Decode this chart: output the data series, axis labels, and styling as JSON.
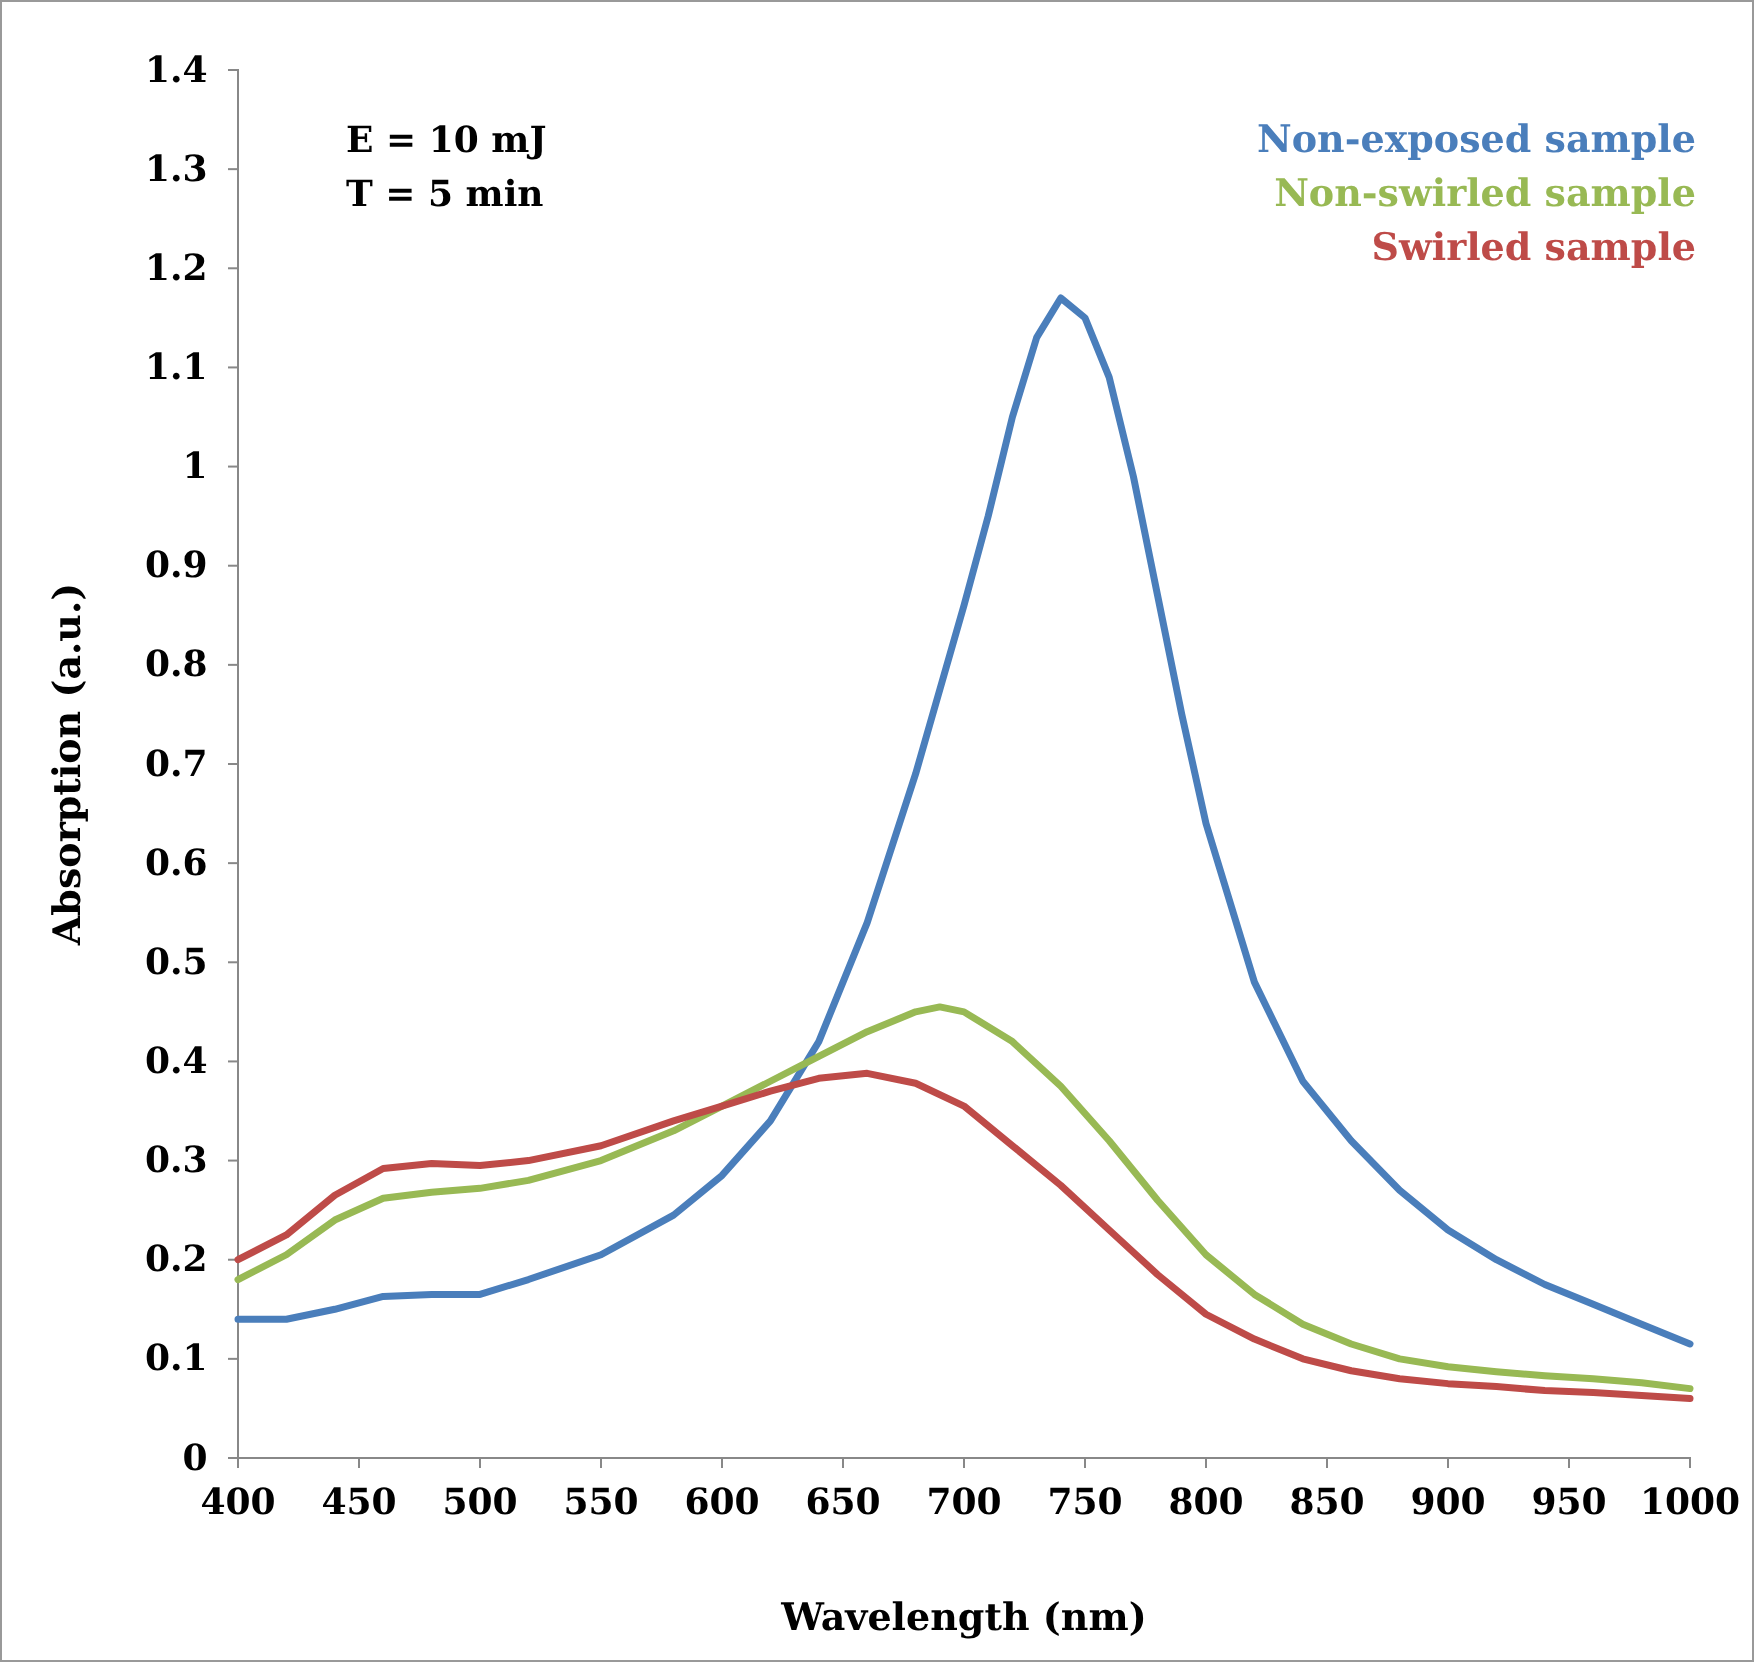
{
  "chart_data": {
    "type": "line",
    "xlabel": "Wavelength (nm)",
    "ylabel": "Absorption (a.u.)",
    "annotations": [
      "E = 10 mJ",
      "T = 5 min"
    ],
    "xlim": [
      400,
      1000
    ],
    "xticks": [
      400,
      450,
      500,
      550,
      600,
      650,
      700,
      750,
      800,
      850,
      900,
      950,
      1000
    ],
    "ylim": [
      0,
      1.4
    ],
    "yticks": [
      0,
      0.1,
      0.2,
      0.3,
      0.4,
      0.5,
      0.6,
      0.7,
      0.8,
      0.9,
      1,
      1.1,
      1.2,
      1.3,
      1.4
    ],
    "grid": false,
    "legend": "top right",
    "marker": "none",
    "line_style": "solid",
    "series": [
      {
        "name": "Non-exposed sample",
        "color": "#4a7ebb",
        "x": [
          400,
          420,
          440,
          460,
          480,
          500,
          520,
          550,
          580,
          600,
          620,
          640,
          660,
          680,
          700,
          710,
          720,
          730,
          740,
          750,
          760,
          770,
          780,
          790,
          800,
          820,
          840,
          860,
          880,
          900,
          920,
          940,
          960,
          980,
          1000
        ],
        "values": [
          0.14,
          0.14,
          0.15,
          0.163,
          0.165,
          0.165,
          0.18,
          0.205,
          0.245,
          0.285,
          0.34,
          0.42,
          0.54,
          0.69,
          0.86,
          0.95,
          1.05,
          1.13,
          1.17,
          1.15,
          1.09,
          0.99,
          0.87,
          0.75,
          0.64,
          0.48,
          0.38,
          0.32,
          0.27,
          0.23,
          0.2,
          0.175,
          0.155,
          0.135,
          0.115
        ]
      },
      {
        "name": "Non-swirled sample",
        "color": "#98b954",
        "x": [
          400,
          420,
          440,
          460,
          480,
          500,
          520,
          550,
          580,
          600,
          620,
          640,
          660,
          680,
          690,
          700,
          720,
          740,
          760,
          780,
          800,
          820,
          840,
          860,
          880,
          900,
          920,
          940,
          960,
          980,
          1000
        ],
        "values": [
          0.18,
          0.205,
          0.24,
          0.262,
          0.268,
          0.272,
          0.28,
          0.3,
          0.33,
          0.355,
          0.38,
          0.405,
          0.43,
          0.45,
          0.455,
          0.45,
          0.42,
          0.375,
          0.32,
          0.26,
          0.205,
          0.165,
          0.135,
          0.115,
          0.1,
          0.092,
          0.087,
          0.083,
          0.08,
          0.076,
          0.07
        ]
      },
      {
        "name": "Swirled sample",
        "color": "#be4b48",
        "x": [
          400,
          420,
          440,
          460,
          480,
          500,
          520,
          550,
          580,
          600,
          620,
          640,
          660,
          680,
          700,
          720,
          740,
          760,
          780,
          800,
          820,
          840,
          860,
          880,
          900,
          920,
          940,
          960,
          980,
          1000
        ],
        "values": [
          0.2,
          0.225,
          0.265,
          0.292,
          0.297,
          0.295,
          0.3,
          0.315,
          0.34,
          0.355,
          0.37,
          0.383,
          0.388,
          0.378,
          0.355,
          0.315,
          0.275,
          0.23,
          0.185,
          0.145,
          0.12,
          0.1,
          0.088,
          0.08,
          0.075,
          0.072,
          0.068,
          0.066,
          0.063,
          0.06
        ]
      }
    ]
  }
}
